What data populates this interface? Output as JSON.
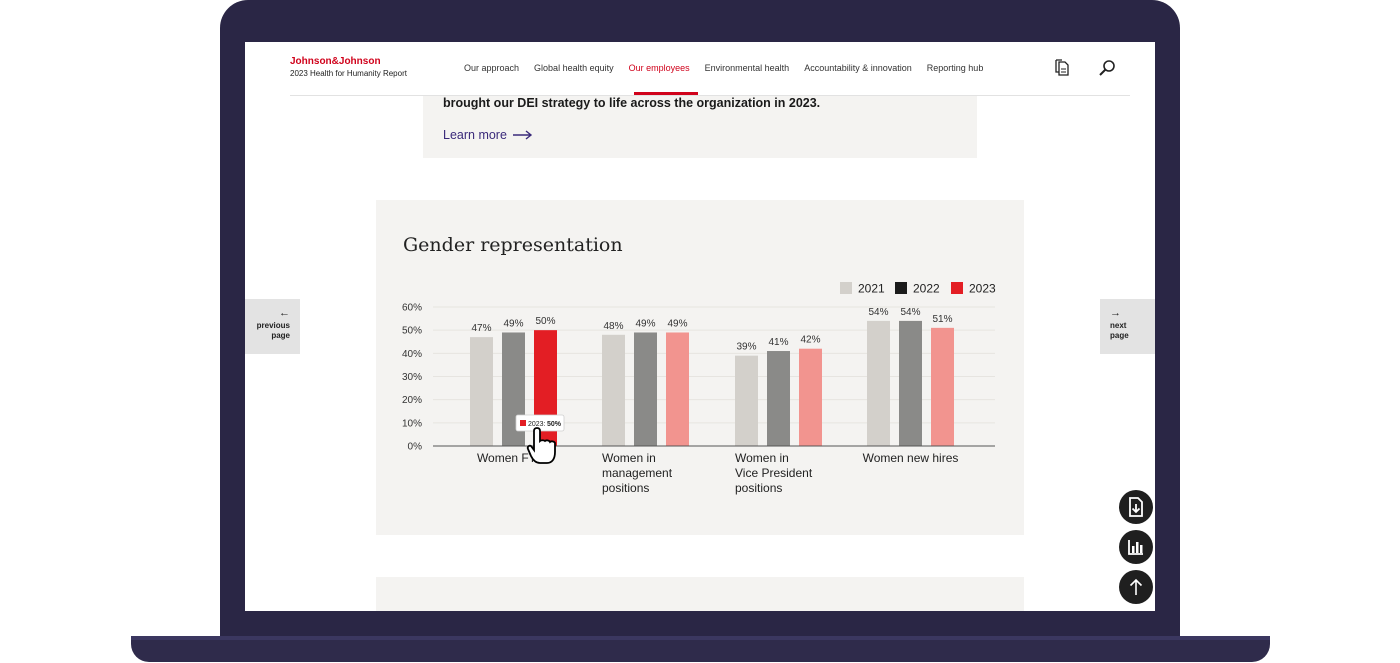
{
  "header": {
    "brand": "Johnson&Johnson",
    "report": "2023 Health for Humanity Report",
    "nav": [
      {
        "label": "Our approach",
        "active": false
      },
      {
        "label": "Global health equity",
        "active": false
      },
      {
        "label": "Our employees",
        "active": true
      },
      {
        "label": "Environmental health",
        "active": false
      },
      {
        "label": "Accountability & innovation",
        "active": false
      },
      {
        "label": "Reporting hub",
        "active": false
      }
    ]
  },
  "callout": {
    "text": "brought our DEI strategy to life across the organization in 2023.",
    "link": "Learn more"
  },
  "pager": {
    "prev_line1": "previous",
    "prev_line2": "page",
    "next_line1": "next",
    "next_line2": "page"
  },
  "colors": {
    "brand_red": "#d0021b",
    "link_purple": "#3a2a7a",
    "series_2021": "#d3d0cb",
    "series_2022": "#1b1b1b",
    "series_2023": "#e31e24"
  },
  "chart_data": {
    "type": "bar",
    "title": "Gender representation",
    "categories": [
      [
        "Women FTEs"
      ],
      [
        "Women in",
        "management",
        "positions"
      ],
      [
        "Women in",
        "Vice President",
        "positions"
      ],
      [
        "Women new hires"
      ]
    ],
    "series": [
      {
        "name": "2021",
        "values": [
          47,
          48,
          39,
          54
        ],
        "labels": [
          "47%",
          "48%",
          "39%",
          "54%"
        ]
      },
      {
        "name": "2022",
        "values": [
          49,
          49,
          41,
          54
        ],
        "labels": [
          "49%",
          "49%",
          "41%",
          "54%"
        ]
      },
      {
        "name": "2023",
        "values": [
          50,
          49,
          42,
          51
        ],
        "labels": [
          "50%",
          "49%",
          "42%",
          "51%"
        ]
      }
    ],
    "y_ticks": [
      "0%",
      "10%",
      "20%",
      "30%",
      "40%",
      "50%",
      "60%"
    ],
    "ylim": [
      0,
      60
    ],
    "legend_position": "top-right",
    "grid": true,
    "highlighted": {
      "series": "2023",
      "category": 0
    },
    "tooltip": {
      "series": "2023",
      "value": "50%"
    }
  }
}
